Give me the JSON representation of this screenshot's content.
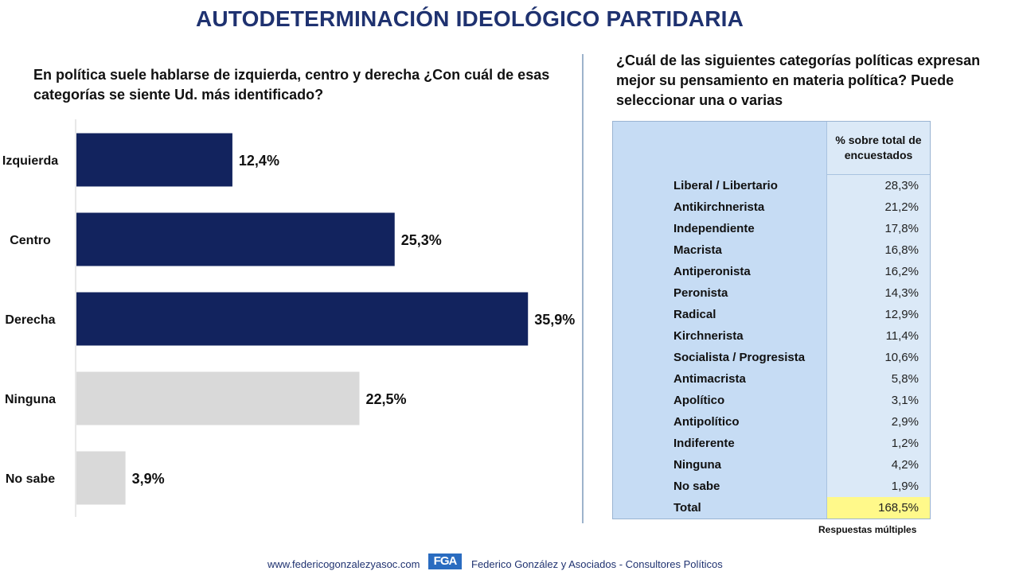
{
  "title": "AUTODETERMINACIÓN IDEOLÓGICO PARTIDARIA",
  "left_question": "En política suele hablarse de izquierda, centro y derecha ¿Con cuál de esas categorías se siente Ud. más identificado?",
  "right_question": "¿Cuál de las siguientes categorías políticas expresan mejor su pensamiento en materia política? Puede seleccionar una o varias",
  "colors": {
    "title": "#1f3270",
    "bar_dark": "#12235e",
    "bar_light": "#d9d9d9",
    "table_bg": "#c6dcf4",
    "total_highlight": "#fff98a"
  },
  "chart_data": [
    {
      "type": "bar",
      "orientation": "horizontal",
      "title": "En política suele hablarse de izquierda, centro y derecha ¿Con cuál de esas categorías se siente Ud. más identificado?",
      "categories": [
        "Izquierda",
        "Centro",
        "Derecha",
        "Ninguna",
        "No sabe"
      ],
      "values": [
        12.4,
        25.3,
        35.9,
        22.5,
        3.9
      ],
      "value_labels": [
        "12,4%",
        "25,3%",
        "35,9%",
        "22,5%",
        "3,9%"
      ],
      "bar_colors": [
        "#12235e",
        "#12235e",
        "#12235e",
        "#d9d9d9",
        "#d9d9d9"
      ],
      "xlim": [
        0,
        40
      ],
      "grid": false
    },
    {
      "type": "table",
      "header": [
        "",
        "% sobre total de encuestados"
      ],
      "rows": [
        [
          "Liberal / Libertario",
          "28,3%"
        ],
        [
          "Antikirchnerista",
          "21,2%"
        ],
        [
          "Independiente",
          "17,8%"
        ],
        [
          "Macrista",
          "16,8%"
        ],
        [
          "Antiperonista",
          "16,2%"
        ],
        [
          "Peronista",
          "14,3%"
        ],
        [
          "Radical",
          "12,9%"
        ],
        [
          "Kirchnerista",
          "11,4%"
        ],
        [
          "Socialista / Progresista",
          "10,6%"
        ],
        [
          "Antimacrista",
          "5,8%"
        ],
        [
          "Apolítico",
          "3,1%"
        ],
        [
          "Antipolítico",
          "2,9%"
        ],
        [
          "Indiferente",
          "1,2%"
        ],
        [
          "Ninguna",
          "4,2%"
        ],
        [
          "No sabe",
          "1,9%"
        ]
      ],
      "total": [
        "Total",
        "168,5%"
      ],
      "note": "Respuestas múltiples"
    }
  ],
  "footer": {
    "url": "www.federicogonzalezyasoc.com",
    "logo_text": "FGA",
    "company": "Federico González y Asociados - Consultores Políticos"
  }
}
